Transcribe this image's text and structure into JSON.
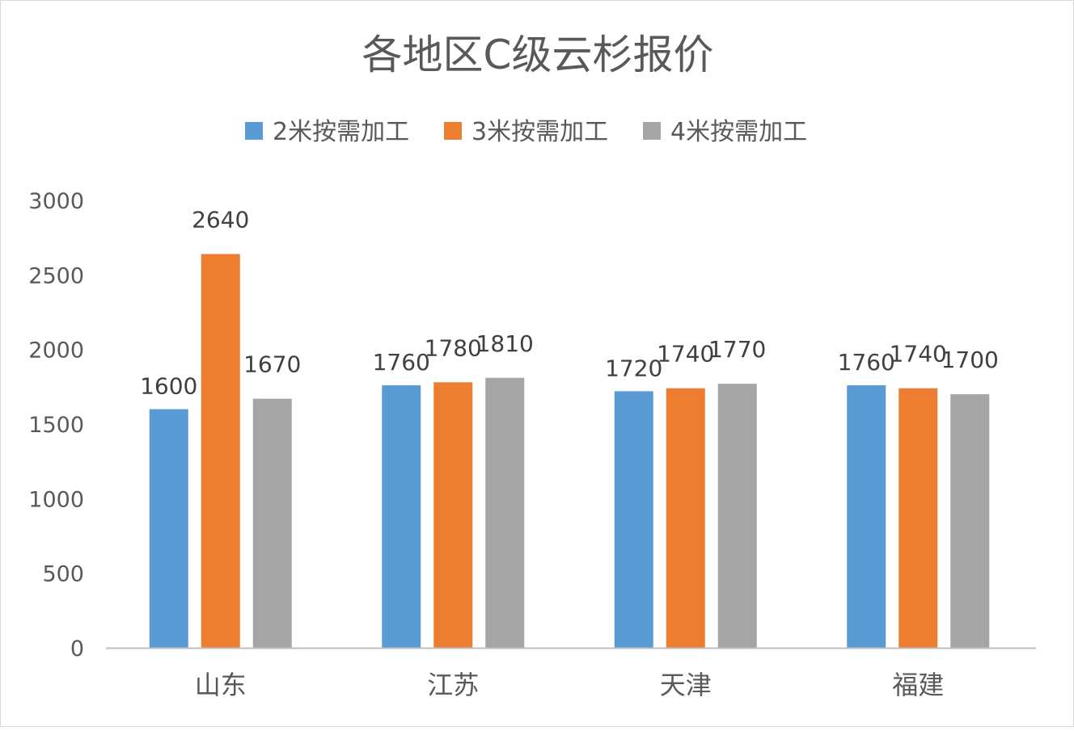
{
  "chart_data": {
    "type": "bar",
    "title": "各地区C级云杉报价",
    "categories": [
      "山东",
      "江苏",
      "天津",
      "福建"
    ],
    "series": [
      {
        "name": "2米按需加工",
        "color": "#5B9BD5",
        "values": [
          1600,
          1760,
          1720,
          1760
        ]
      },
      {
        "name": "3米按需加工",
        "color": "#ED7D31",
        "values": [
          2640,
          1780,
          1740,
          1740
        ]
      },
      {
        "name": "4米按需加工",
        "color": "#A5A5A5",
        "values": [
          1670,
          1810,
          1770,
          1700
        ]
      }
    ],
    "yticks": [
      "0",
      "500",
      "1000",
      "1500",
      "2000",
      "2500",
      "3000"
    ],
    "ylim": [
      0,
      3000
    ],
    "xlabel": "",
    "ylabel": "",
    "grid": false,
    "legend": "top",
    "data_labels": true
  }
}
